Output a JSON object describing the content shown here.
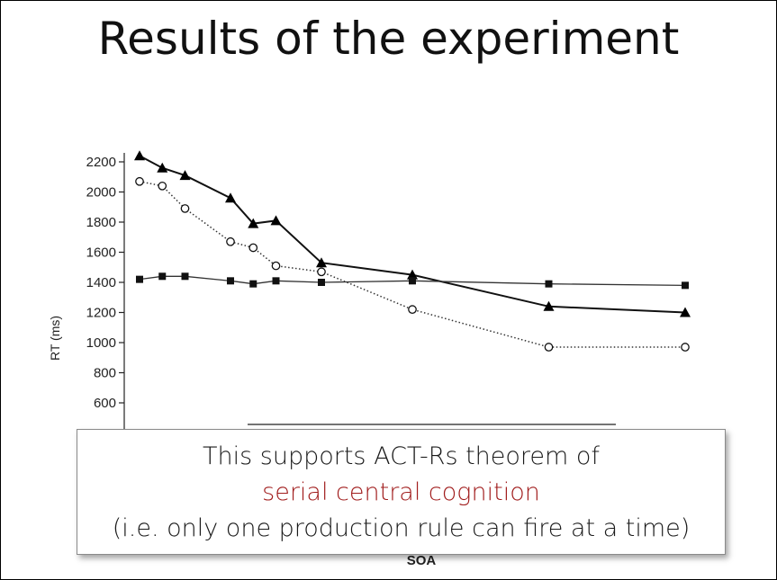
{
  "slide": {
    "title": "Results of the experiment"
  },
  "callout": {
    "line1": "This supports ACT-Rs theorem of",
    "line2": "serial central cognition",
    "line3": "(i.e. only one production rule can fire at a time)",
    "accent_color": "#a11d1d"
  },
  "chart_data": {
    "type": "line",
    "title": "",
    "xlabel": "SOA",
    "ylabel": "RT (ms)",
    "ylim": [
      400,
      2200
    ],
    "yticks": [
      "600",
      "800",
      "1000",
      "1200",
      "1400",
      "1600",
      "1800",
      "2000",
      "2200"
    ],
    "series": [
      {
        "name": "filled triangles",
        "marker": "triangle",
        "line": "solid",
        "points": [
          [
            0,
            2240
          ],
          [
            1,
            2160
          ],
          [
            2,
            2110
          ],
          [
            4,
            1960
          ],
          [
            5,
            1790
          ],
          [
            6,
            1810
          ],
          [
            8,
            1530
          ],
          [
            12,
            1450
          ],
          [
            18,
            1240
          ],
          [
            24,
            1200
          ]
        ]
      },
      {
        "name": "open circles",
        "marker": "circle",
        "line": "dotted",
        "points": [
          [
            0,
            2070
          ],
          [
            1,
            2040
          ],
          [
            2,
            1890
          ],
          [
            4,
            1670
          ],
          [
            5,
            1630
          ],
          [
            6,
            1510
          ],
          [
            8,
            1470
          ],
          [
            12,
            1220
          ],
          [
            18,
            970
          ],
          [
            24,
            970
          ]
        ]
      },
      {
        "name": "filled squares",
        "marker": "square",
        "line": "solid",
        "points": [
          [
            0,
            1420
          ],
          [
            1,
            1440
          ],
          [
            2,
            1440
          ],
          [
            4,
            1410
          ],
          [
            5,
            1390
          ],
          [
            6,
            1410
          ],
          [
            8,
            1400
          ],
          [
            12,
            1410
          ],
          [
            18,
            1390
          ],
          [
            24,
            1380
          ]
        ]
      }
    ]
  }
}
